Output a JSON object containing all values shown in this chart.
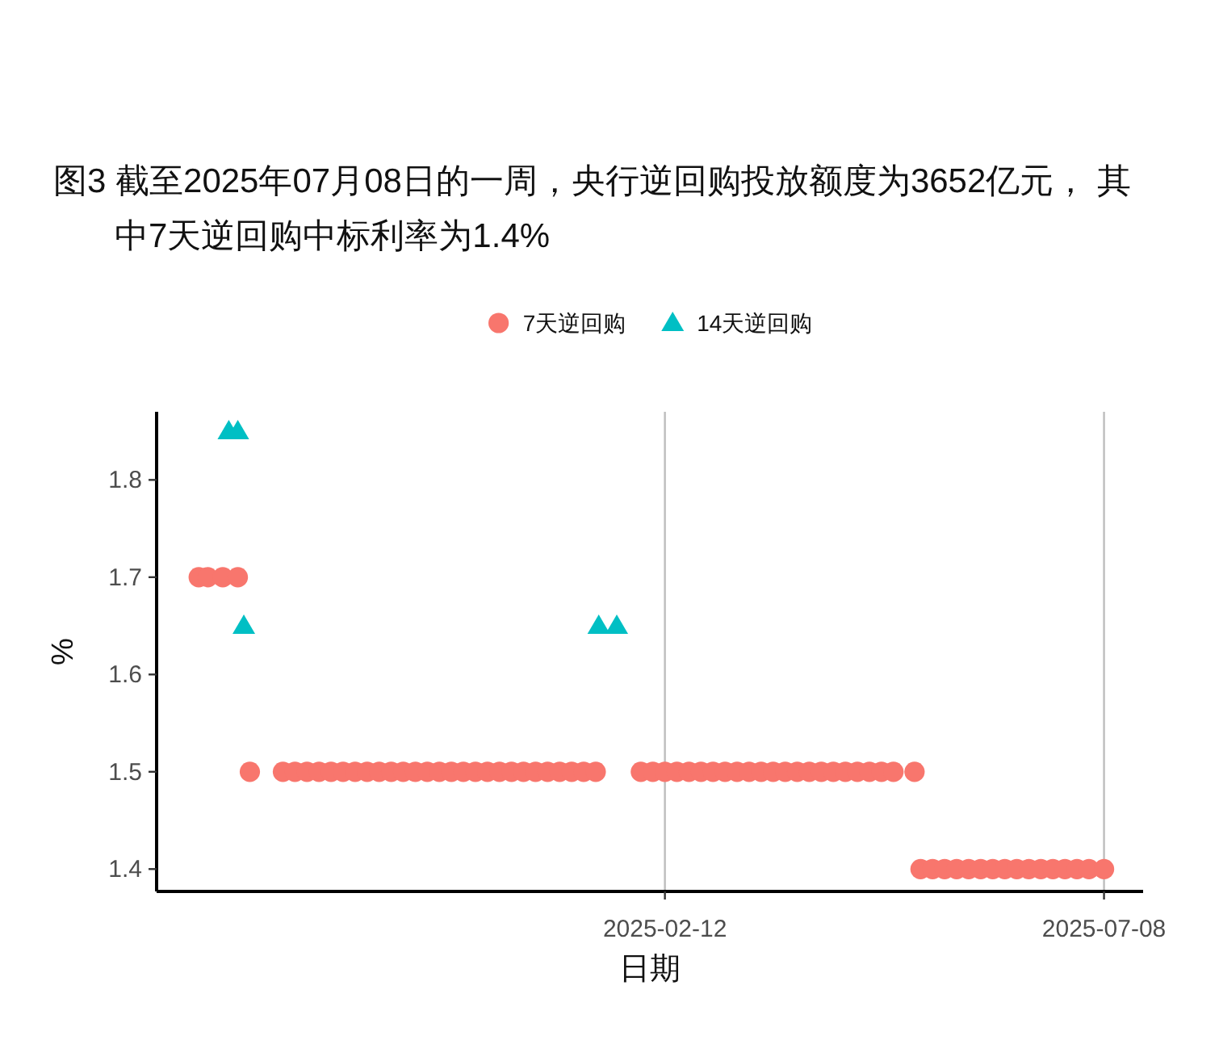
{
  "chart_data": {
    "type": "scatter",
    "title": "图3  截至2025年07月08日的一周，央行逆回购投放额度为3652亿元， 其中7天逆回购中标利率为1.4%",
    "xlabel": "日期",
    "ylabel": "%",
    "series": [
      {
        "name": "7天逆回购",
        "color": "#f8766d",
        "marker": "circle",
        "x": [
          "2024-09-10",
          "2024-09-13",
          "2024-09-18",
          "2024-09-23",
          "2024-09-27",
          "2024-10-08",
          "2024-10-12",
          "2024-10-16",
          "2024-10-20",
          "2024-10-24",
          "2024-10-28",
          "2024-11-01",
          "2024-11-05",
          "2024-11-09",
          "2024-11-13",
          "2024-11-17",
          "2024-11-21",
          "2024-11-25",
          "2024-11-29",
          "2024-12-03",
          "2024-12-07",
          "2024-12-11",
          "2024-12-15",
          "2024-12-19",
          "2024-12-23",
          "2024-12-27",
          "2024-12-31",
          "2025-01-04",
          "2025-01-08",
          "2025-01-12",
          "2025-01-16",
          "2025-01-20",
          "2025-02-04",
          "2025-02-08",
          "2025-02-12",
          "2025-02-16",
          "2025-02-20",
          "2025-02-24",
          "2025-02-28",
          "2025-03-04",
          "2025-03-08",
          "2025-03-12",
          "2025-03-16",
          "2025-03-20",
          "2025-03-24",
          "2025-03-28",
          "2025-04-01",
          "2025-04-05",
          "2025-04-09",
          "2025-04-13",
          "2025-04-17",
          "2025-04-21",
          "2025-04-25",
          "2025-04-29",
          "2025-05-06",
          "2025-05-08",
          "2025-05-12",
          "2025-05-16",
          "2025-05-20",
          "2025-05-24",
          "2025-05-28",
          "2025-06-01",
          "2025-06-05",
          "2025-06-09",
          "2025-06-13",
          "2025-06-17",
          "2025-06-21",
          "2025-06-25",
          "2025-06-29",
          "2025-07-03",
          "2025-07-08"
        ],
        "values": [
          1.7,
          1.7,
          1.7,
          1.7,
          1.5,
          1.5,
          1.5,
          1.5,
          1.5,
          1.5,
          1.5,
          1.5,
          1.5,
          1.5,
          1.5,
          1.5,
          1.5,
          1.5,
          1.5,
          1.5,
          1.5,
          1.5,
          1.5,
          1.5,
          1.5,
          1.5,
          1.5,
          1.5,
          1.5,
          1.5,
          1.5,
          1.5,
          1.5,
          1.5,
          1.5,
          1.5,
          1.5,
          1.5,
          1.5,
          1.5,
          1.5,
          1.5,
          1.5,
          1.5,
          1.5,
          1.5,
          1.5,
          1.5,
          1.5,
          1.5,
          1.5,
          1.5,
          1.5,
          1.5,
          1.5,
          1.4,
          1.4,
          1.4,
          1.4,
          1.4,
          1.4,
          1.4,
          1.4,
          1.4,
          1.4,
          1.4,
          1.4,
          1.4,
          1.4,
          1.4,
          1.4
        ]
      },
      {
        "name": "14天逆回购",
        "color": "#00bfc4",
        "marker": "triangle",
        "x": [
          "2024-09-20",
          "2024-09-23",
          "2024-09-25",
          "2025-01-21",
          "2025-01-27"
        ],
        "values": [
          1.85,
          1.85,
          1.65,
          1.65,
          1.65
        ]
      }
    ],
    "xlim": [
      "2024-08-27",
      "2025-07-21"
    ],
    "xticks": [
      "2025-02-12",
      "2025-07-08"
    ],
    "ylim": [
      1.377,
      1.87
    ],
    "yticks": [
      1.4,
      1.5,
      1.6,
      1.7,
      1.8
    ],
    "grid": "x",
    "legend": "top"
  }
}
